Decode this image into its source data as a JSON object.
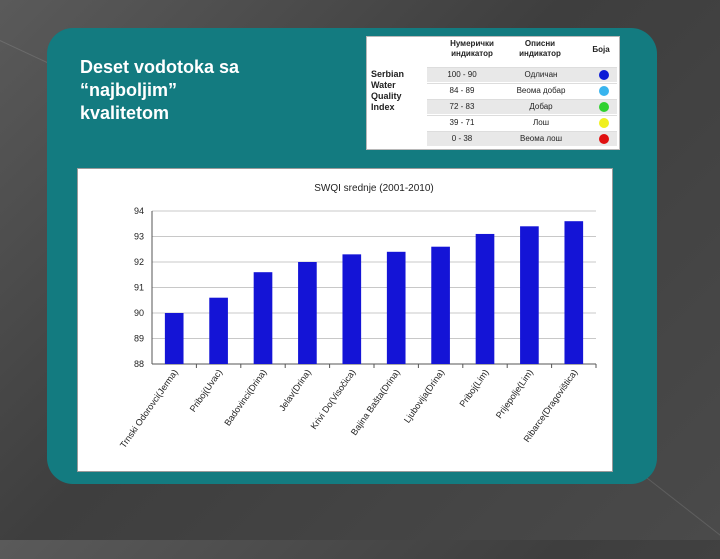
{
  "slide": {
    "title": "Deset vodotoka sa\n“najboljim”\nkvalitetom"
  },
  "index_table": {
    "label": "Serbian Water Quality Index",
    "col_numeric": "Нумерички индикатор",
    "col_desc": "Описни индикатор",
    "col_color": "Боја",
    "rows": [
      {
        "range": "100 - 90",
        "desc": "Одличан",
        "color": "#0a1ad6"
      },
      {
        "range": "84 - 89",
        "desc": "Веома добар",
        "color": "#38b4ee"
      },
      {
        "range": "72 - 83",
        "desc": "Добар",
        "color": "#2fd12f"
      },
      {
        "range": "39 - 71",
        "desc": "Лош",
        "color": "#f0f01e"
      },
      {
        "range": "0 - 38",
        "desc": "Веома лош",
        "color": "#e01010"
      }
    ]
  },
  "chart_data": {
    "type": "bar",
    "title": "SWQI srednje (2001-2010)",
    "categories": [
      "Trnski Odorovci(Jerma)",
      "Priboj(Uvac)",
      "Badovinci(Drina)",
      "Jelav(Drina)",
      "Krivi Do(Visočica)",
      "Bajina Bašta(Drina)",
      "Ljubovija(Drina)",
      "Priboj(Lim)",
      "Prijepolje(Lim)",
      "Ribarce(Dragovištica)"
    ],
    "values": [
      90.0,
      90.6,
      91.6,
      92.0,
      92.3,
      92.4,
      92.6,
      93.1,
      93.4,
      93.6
    ],
    "ylim": [
      88,
      94
    ],
    "yticks": [
      "88",
      "89",
      "90",
      "91",
      "92",
      "93",
      "94"
    ],
    "bar_color": "#1414d6",
    "grid": true
  }
}
